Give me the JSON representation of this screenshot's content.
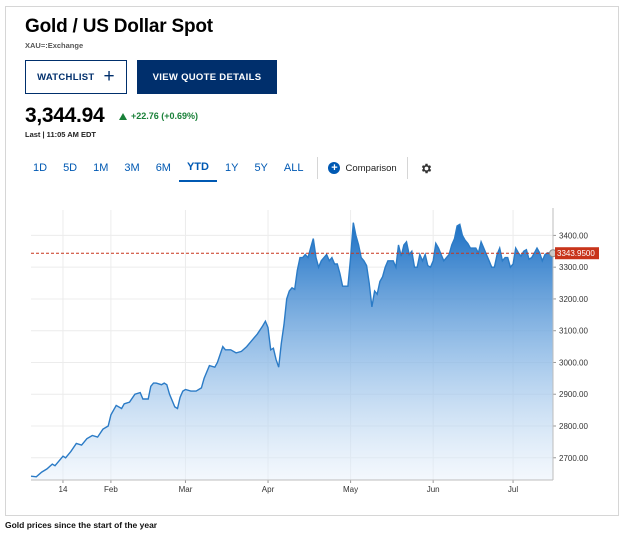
{
  "header": {
    "title": "Gold / US Dollar Spot",
    "exchange": "XAU=:Exchange"
  },
  "buttons": {
    "watchlist": "WATCHLIST",
    "watchlist_icon": "+",
    "view_quote": "VIEW QUOTE DETAILS"
  },
  "quote": {
    "price": "3,344.94",
    "change": "+22.76 (+0.69%)",
    "last": "Last | 11:05 AM EDT",
    "change_color": "#198038"
  },
  "tabs": [
    "1D",
    "5D",
    "1M",
    "3M",
    "6M",
    "YTD",
    "1Y",
    "5Y",
    "ALL"
  ],
  "active_tab": "YTD",
  "comparison": {
    "icon": "+",
    "label": "Comparison"
  },
  "settings_icon": "gear-icon",
  "caption": "Gold prices since the start of the year",
  "chart_data": {
    "type": "area",
    "ylim": [
      2630,
      3480
    ],
    "y_ticks": [
      "3400.00",
      "3300.00",
      "3200.00",
      "3100.00",
      "3000.00",
      "2900.00",
      "2800.00",
      "2700.00"
    ],
    "y_tick_values": [
      3400,
      3300,
      3200,
      3100,
      3000,
      2900,
      2800,
      2700
    ],
    "x_ticks": [
      "14",
      "Feb",
      "Mar",
      "Apr",
      "May",
      "Jun",
      "Jul"
    ],
    "x_tick_days": [
      13,
      31,
      59,
      90,
      121,
      152,
      182
    ],
    "x_range_days": [
      1,
      197
    ],
    "current_value": 3343.95,
    "current_label": "3343.9500",
    "line_color": "#2b7bc6",
    "marker_color": "#c8341b",
    "series": [
      {
        "points": [
          [
            1,
            2642
          ],
          [
            3,
            2640
          ],
          [
            5,
            2655
          ],
          [
            7,
            2665
          ],
          [
            9,
            2680
          ],
          [
            10,
            2675
          ],
          [
            12,
            2695
          ],
          [
            13,
            2705
          ],
          [
            14,
            2700
          ],
          [
            16,
            2720
          ],
          [
            18,
            2745
          ],
          [
            20,
            2740
          ],
          [
            22,
            2760
          ],
          [
            24,
            2770
          ],
          [
            26,
            2765
          ],
          [
            28,
            2790
          ],
          [
            30,
            2800
          ],
          [
            31,
            2835
          ],
          [
            33,
            2865
          ],
          [
            35,
            2855
          ],
          [
            36,
            2870
          ],
          [
            38,
            2875
          ],
          [
            40,
            2900
          ],
          [
            42,
            2905
          ],
          [
            43,
            2885
          ],
          [
            45,
            2885
          ],
          [
            46,
            2925
          ],
          [
            47,
            2935
          ],
          [
            48,
            2935
          ],
          [
            50,
            2930
          ],
          [
            51,
            2935
          ],
          [
            52,
            2930
          ],
          [
            53,
            2900
          ],
          [
            55,
            2860
          ],
          [
            56,
            2855
          ],
          [
            57,
            2890
          ],
          [
            58,
            2910
          ],
          [
            59,
            2915
          ],
          [
            61,
            2910
          ],
          [
            63,
            2910
          ],
          [
            65,
            2920
          ],
          [
            66,
            2950
          ],
          [
            68,
            2990
          ],
          [
            70,
            2985
          ],
          [
            71,
            3000
          ],
          [
            73,
            3050
          ],
          [
            74,
            3040
          ],
          [
            76,
            3040
          ],
          [
            78,
            3030
          ],
          [
            80,
            3035
          ],
          [
            82,
            3050
          ],
          [
            84,
            3070
          ],
          [
            86,
            3090
          ],
          [
            88,
            3115
          ],
          [
            89,
            3130
          ],
          [
            90,
            3110
          ],
          [
            91,
            3040
          ],
          [
            92,
            3045
          ],
          [
            93,
            3010
          ],
          [
            94,
            2985
          ],
          [
            95,
            3060
          ],
          [
            96,
            3120
          ],
          [
            97,
            3200
          ],
          [
            98,
            3225
          ],
          [
            99,
            3235
          ],
          [
            100,
            3230
          ],
          [
            101,
            3290
          ],
          [
            102,
            3330
          ],
          [
            103,
            3330
          ],
          [
            104,
            3340
          ],
          [
            105,
            3330
          ],
          [
            106,
            3360
          ],
          [
            107,
            3390
          ],
          [
            108,
            3330
          ],
          [
            109,
            3300
          ],
          [
            110,
            3320
          ],
          [
            112,
            3340
          ],
          [
            113,
            3320
          ],
          [
            114,
            3330
          ],
          [
            115,
            3310
          ],
          [
            116,
            3310
          ],
          [
            117,
            3280
          ],
          [
            118,
            3240
          ],
          [
            119,
            3240
          ],
          [
            120,
            3240
          ],
          [
            121,
            3330
          ],
          [
            122,
            3440
          ],
          [
            123,
            3400
          ],
          [
            124,
            3370
          ],
          [
            125,
            3330
          ],
          [
            126,
            3320
          ],
          [
            127,
            3305
          ],
          [
            128,
            3250
          ],
          [
            129,
            3175
          ],
          [
            130,
            3225
          ],
          [
            131,
            3215
          ],
          [
            132,
            3255
          ],
          [
            133,
            3270
          ],
          [
            134,
            3300
          ],
          [
            135,
            3320
          ],
          [
            136,
            3320
          ],
          [
            137,
            3320
          ],
          [
            138,
            3300
          ],
          [
            139,
            3370
          ],
          [
            140,
            3335
          ],
          [
            141,
            3370
          ],
          [
            142,
            3380
          ],
          [
            143,
            3340
          ],
          [
            144,
            3350
          ],
          [
            145,
            3300
          ],
          [
            146,
            3300
          ],
          [
            147,
            3340
          ],
          [
            148,
            3320
          ],
          [
            149,
            3340
          ],
          [
            150,
            3305
          ],
          [
            151,
            3300
          ],
          [
            152,
            3320
          ],
          [
            153,
            3375
          ],
          [
            154,
            3360
          ],
          [
            155,
            3340
          ],
          [
            156,
            3320
          ],
          [
            157,
            3330
          ],
          [
            158,
            3340
          ],
          [
            159,
            3370
          ],
          [
            160,
            3390
          ],
          [
            161,
            3430
          ],
          [
            162,
            3435
          ],
          [
            163,
            3400
          ],
          [
            164,
            3385
          ],
          [
            165,
            3375
          ],
          [
            166,
            3360
          ],
          [
            167,
            3360
          ],
          [
            168,
            3360
          ],
          [
            169,
            3345
          ],
          [
            170,
            3380
          ],
          [
            171,
            3360
          ],
          [
            172,
            3340
          ],
          [
            173,
            3320
          ],
          [
            174,
            3300
          ],
          [
            175,
            3300
          ],
          [
            176,
            3340
          ],
          [
            177,
            3360
          ],
          [
            178,
            3320
          ],
          [
            179,
            3330
          ],
          [
            180,
            3330
          ],
          [
            181,
            3300
          ],
          [
            182,
            3310
          ],
          [
            183,
            3360
          ],
          [
            184,
            3345
          ],
          [
            185,
            3335
          ],
          [
            186,
            3350
          ],
          [
            187,
            3355
          ],
          [
            188,
            3325
          ],
          [
            189,
            3330
          ],
          [
            190,
            3345
          ],
          [
            191,
            3360
          ],
          [
            192,
            3345
          ],
          [
            193,
            3320
          ],
          [
            194,
            3340
          ],
          [
            195,
            3345
          ],
          [
            196,
            3344
          ],
          [
            197,
            3344
          ]
        ]
      }
    ]
  }
}
